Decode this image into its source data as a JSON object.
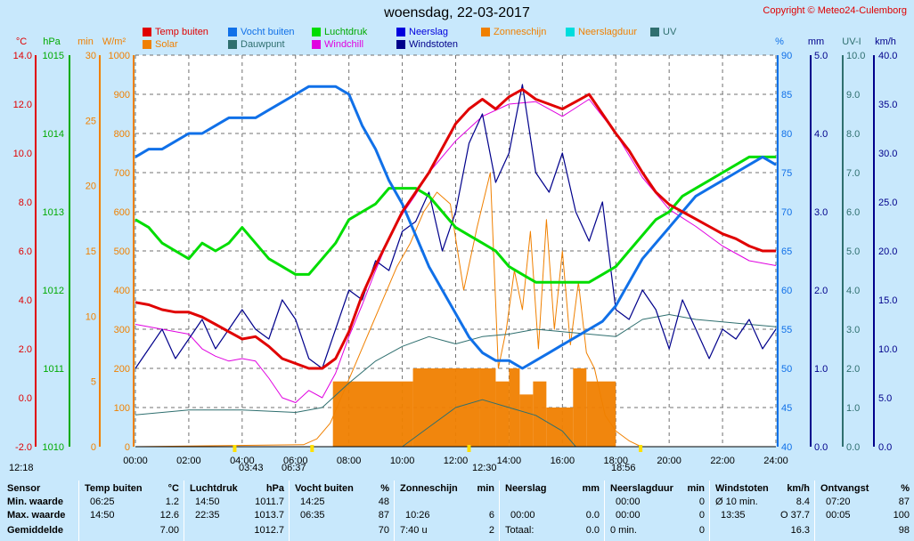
{
  "header": {
    "title": "woensdag, 22-03-2017",
    "copyright": "Copyright © Meteo24-Culemborg"
  },
  "legend": [
    {
      "label": "Temp buiten",
      "color": "#E00000"
    },
    {
      "label": "Solar",
      "color": "#F08000"
    },
    {
      "label": "Vocht buiten",
      "color": "#1070E8"
    },
    {
      "label": "Dauwpunt",
      "color": "#2F6F6F"
    },
    {
      "label": "Luchtdruk",
      "color": "#00DD00"
    },
    {
      "label": "Windchill",
      "color": "#E000E0"
    },
    {
      "label": "Neerslag",
      "color": "#0000DD"
    },
    {
      "label": "Windstoten",
      "color": "#00008B"
    },
    {
      "label": "Zonneschijn",
      "color": "#F08000"
    },
    {
      "label": "Neerslagduur",
      "color": "#00DDDD"
    },
    {
      "label": "UV",
      "color": "#2F6F6F"
    }
  ],
  "axes": {
    "left_units": [
      "°C",
      "hPa",
      "min",
      "W/m²"
    ],
    "right_units": [
      "%",
      "mm",
      "UV-I",
      "km/h"
    ],
    "temp_ticks": [
      "14.0",
      "12.0",
      "10.0",
      "8.0",
      "6.0",
      "4.0",
      "2.0",
      "0.0",
      "-2.0"
    ],
    "hpa_ticks": [
      "1015",
      "1014",
      "1013",
      "1012",
      "1011",
      "1010"
    ],
    "min_ticks": [
      "30",
      "25",
      "20",
      "15",
      "10",
      "5",
      "0"
    ],
    "solar_ticks": [
      "1000",
      "900",
      "800",
      "700",
      "600",
      "500",
      "400",
      "300",
      "200",
      "100",
      "0"
    ],
    "hum_ticks": [
      "90",
      "85",
      "80",
      "75",
      "70",
      "65",
      "60",
      "55",
      "50",
      "45",
      "40"
    ],
    "rain_ticks": [
      "5.0",
      "4.0",
      "3.0",
      "2.0",
      "1.0",
      "0.0"
    ],
    "uv_ticks": [
      "10.0",
      "9.0",
      "8.0",
      "7.0",
      "6.0",
      "5.0",
      "4.0",
      "3.0",
      "2.0",
      "1.0",
      "0.0"
    ],
    "wind_ticks": [
      "40.0",
      "35.0",
      "30.0",
      "25.0",
      "20.0",
      "15.0",
      "10.0",
      "5.0",
      "0.0"
    ],
    "time_ticks": [
      "00:00",
      "02:00",
      "04:00",
      "06:00",
      "08:00",
      "10:00",
      "12:00",
      "14:00",
      "16:00",
      "18:00",
      "20:00",
      "22:00",
      "24:00"
    ]
  },
  "sun_markers": {
    "moonrise": "12:18",
    "dawn": "03:43",
    "sunrise": "06:37",
    "noon": "12:30",
    "sunset": "18:56"
  },
  "chart_data": {
    "type": "line",
    "title": "woensdag, 22-03-2017",
    "x_range_hours": [
      0,
      24
    ],
    "series": [
      {
        "name": "Temp buiten",
        "unit": "°C",
        "ylim": [
          -2,
          14
        ],
        "x": [
          0,
          0.5,
          1,
          1.5,
          2,
          2.5,
          3,
          3.5,
          4,
          4.5,
          5,
          5.5,
          6,
          6.5,
          7,
          7.5,
          8,
          8.5,
          9,
          9.5,
          10,
          10.5,
          11,
          11.5,
          12,
          12.5,
          13,
          13.5,
          14,
          14.5,
          15,
          15.5,
          16,
          16.5,
          17,
          17.5,
          18,
          18.5,
          19,
          19.5,
          20,
          20.5,
          21,
          21.5,
          22,
          22.5,
          23,
          23.5,
          24
        ],
        "values": [
          3.9,
          3.8,
          3.6,
          3.5,
          3.5,
          3.3,
          3.0,
          2.7,
          2.4,
          2.5,
          2.1,
          1.6,
          1.4,
          1.2,
          1.2,
          1.6,
          2.7,
          4.2,
          5.4,
          6.5,
          7.6,
          8.4,
          9.2,
          10.2,
          11.2,
          11.8,
          12.2,
          11.8,
          12.3,
          12.6,
          12.2,
          12.0,
          11.8,
          12.1,
          12.4,
          11.6,
          10.8,
          10.1,
          9.2,
          8.4,
          7.9,
          7.6,
          7.3,
          7.0,
          6.7,
          6.5,
          6.2,
          6.0,
          6.0
        ]
      },
      {
        "name": "Vocht buiten",
        "unit": "%",
        "ylim": [
          40,
          90
        ],
        "x": [
          0,
          0.5,
          1,
          1.5,
          2,
          2.5,
          3,
          3.5,
          4,
          4.5,
          5,
          5.5,
          6,
          6.5,
          7,
          7.5,
          8,
          8.5,
          9,
          9.5,
          10,
          10.5,
          11,
          11.5,
          12,
          12.5,
          13,
          13.5,
          14,
          14.5,
          15,
          15.5,
          16,
          16.5,
          17,
          17.5,
          18,
          18.5,
          19,
          19.5,
          20,
          20.5,
          21,
          21.5,
          22,
          22.5,
          23,
          23.5,
          24
        ],
        "values": [
          77,
          78,
          78,
          79,
          80,
          80,
          81,
          82,
          82,
          82,
          83,
          84,
          85,
          86,
          86,
          86,
          85,
          81,
          78,
          74,
          71,
          67,
          63,
          60,
          57,
          54,
          52,
          51,
          51,
          50,
          51,
          52,
          53,
          54,
          55,
          56,
          58,
          61,
          64,
          66,
          68,
          70,
          72,
          73,
          74,
          75,
          76,
          77,
          76
        ]
      },
      {
        "name": "Luchtdruk",
        "unit": "hPa",
        "ylim": [
          1010,
          1015
        ],
        "x": [
          0,
          0.5,
          1,
          1.5,
          2,
          2.5,
          3,
          3.5,
          4,
          4.5,
          5,
          5.5,
          6,
          6.5,
          7,
          7.5,
          8,
          8.5,
          9,
          9.5,
          10,
          10.5,
          11,
          11.5,
          12,
          12.5,
          13,
          13.5,
          14,
          14.5,
          15,
          15.5,
          16,
          16.5,
          17,
          17.5,
          18,
          18.5,
          19,
          19.5,
          20,
          20.5,
          21,
          21.5,
          22,
          22.5,
          23,
          23.5,
          24
        ],
        "values": [
          1012.9,
          1012.8,
          1012.6,
          1012.5,
          1012.4,
          1012.6,
          1012.5,
          1012.6,
          1012.8,
          1012.6,
          1012.4,
          1012.3,
          1012.2,
          1012.2,
          1012.4,
          1012.6,
          1012.9,
          1013.0,
          1013.1,
          1013.3,
          1013.3,
          1013.3,
          1013.2,
          1013.0,
          1012.8,
          1012.7,
          1012.6,
          1012.5,
          1012.3,
          1012.2,
          1012.1,
          1012.1,
          1012.1,
          1012.1,
          1012.1,
          1012.2,
          1012.3,
          1012.5,
          1012.7,
          1012.9,
          1013.0,
          1013.2,
          1013.3,
          1013.4,
          1013.5,
          1013.6,
          1013.7,
          1013.7,
          1013.7
        ]
      },
      {
        "name": "Solar",
        "unit": "W/m²",
        "ylim": [
          0,
          1000
        ],
        "x": [
          0,
          6.3,
          6.8,
          7.3,
          7.8,
          8.3,
          8.8,
          9.3,
          9.8,
          10.3,
          10.8,
          11.3,
          11.8,
          12.3,
          12.8,
          13.3,
          13.6,
          13.9,
          14.2,
          14.5,
          14.8,
          15.1,
          15.4,
          15.7,
          16.0,
          16.3,
          16.6,
          16.9,
          17.2,
          17.6,
          18.0,
          18.5,
          18.95,
          24
        ],
        "values": [
          0,
          5,
          20,
          60,
          140,
          220,
          300,
          380,
          460,
          520,
          600,
          650,
          620,
          400,
          560,
          700,
          200,
          300,
          450,
          350,
          550,
          250,
          580,
          300,
          500,
          260,
          420,
          240,
          200,
          80,
          40,
          15,
          0,
          0
        ]
      },
      {
        "name": "Zonneschijn",
        "unit": "min",
        "ylim": [
          0,
          30
        ],
        "x": [
          7.4,
          10.4,
          12.9,
          13.5,
          14.0,
          14.4,
          14.9,
          15.4,
          16.4,
          16.9,
          18.0
        ],
        "values": [
          5,
          6,
          6,
          5,
          6,
          4,
          5,
          3,
          6,
          5,
          0
        ]
      },
      {
        "name": "Windstoten",
        "unit": "km/h",
        "ylim": [
          0,
          40
        ],
        "x": [
          0,
          0.5,
          1,
          1.5,
          2,
          2.5,
          3,
          3.5,
          4,
          4.5,
          5,
          5.5,
          6,
          6.5,
          7,
          7.5,
          8,
          8.5,
          9,
          9.5,
          10,
          10.5,
          11,
          11.5,
          12,
          12.5,
          13,
          13.5,
          14,
          14.5,
          15,
          15.5,
          16,
          16.5,
          17,
          17.5,
          18,
          18.5,
          19,
          19.5,
          20,
          20.5,
          21,
          21.5,
          22,
          22.5,
          23,
          23.5,
          24
        ],
        "values": [
          8,
          10,
          12,
          9,
          11,
          13,
          10,
          12,
          14,
          12,
          11,
          15,
          13,
          9,
          8,
          12,
          16,
          15,
          19,
          18,
          22,
          23,
          26,
          20,
          24,
          31,
          34,
          27,
          30,
          37,
          28,
          26,
          30,
          24,
          21,
          25,
          14,
          13,
          16,
          14,
          10,
          15,
          12,
          9,
          12,
          11,
          13,
          10,
          12
        ]
      },
      {
        "name": "Windchill",
        "unit": "°C",
        "ylim": [
          -2,
          14
        ],
        "x": [
          0,
          1,
          2,
          2.5,
          3,
          3.5,
          4,
          4.5,
          5,
          5.5,
          6,
          6.5,
          7,
          7.5,
          8,
          8.5,
          9,
          9.5,
          10,
          10.5,
          11,
          12,
          13,
          14,
          15,
          16,
          17,
          18,
          19,
          20,
          21,
          22,
          23,
          24
        ],
        "values": [
          3.0,
          2.8,
          2.6,
          2.0,
          1.7,
          1.5,
          1.6,
          1.5,
          0.8,
          0.0,
          -0.2,
          0.3,
          0.0,
          1.0,
          2.5,
          3.8,
          5.2,
          6.5,
          7.5,
          8.3,
          9.2,
          10.5,
          11.5,
          12.0,
          12.1,
          11.5,
          12.2,
          10.8,
          9.0,
          7.7,
          7.0,
          6.2,
          5.6,
          5.4
        ]
      },
      {
        "name": "Dauwpunt",
        "unit": "°C",
        "ylim": [
          -2,
          14
        ],
        "x": [
          0,
          2,
          4,
          6,
          7,
          8,
          9,
          10,
          11,
          12,
          13,
          14,
          15,
          16,
          17,
          18,
          19,
          20,
          21,
          22,
          23,
          24
        ],
        "values": [
          -0.7,
          -0.5,
          -0.5,
          -0.6,
          -0.4,
          0.6,
          1.5,
          2.1,
          2.5,
          2.2,
          2.5,
          2.6,
          2.8,
          2.7,
          2.6,
          2.5,
          3.2,
          3.4,
          3.2,
          3.1,
          3.0,
          2.9
        ]
      },
      {
        "name": "UV",
        "unit": "UV-I",
        "ylim": [
          0,
          10
        ],
        "x": [
          0,
          10,
          11,
          12,
          13,
          14,
          15,
          16,
          16.5,
          17,
          24
        ],
        "values": [
          0,
          0,
          0.5,
          1.0,
          1.2,
          1.0,
          0.8,
          0.4,
          0,
          0,
          0
        ]
      }
    ]
  },
  "table": {
    "row_labels": {
      "sensor": "Sensor",
      "min": "Min. waarde",
      "max": "Max. waarde",
      "avg": "Gemiddelde"
    },
    "temp": {
      "header": "Temp buiten",
      "unit": "°C",
      "min_time": "06:25",
      "min": "1.2",
      "max_time": "14:50",
      "max": "12.6",
      "avg": "7.00"
    },
    "pressure": {
      "header": "Luchtdruk",
      "unit": "hPa",
      "min_time": "14:50",
      "min": "1011.7",
      "max_time": "22:35",
      "max": "1013.7",
      "avg": "1012.7"
    },
    "humidity": {
      "header": "Vocht buiten",
      "unit": "%",
      "min_time": "14:25",
      "min": "48",
      "max_time": "06:35",
      "max": "87",
      "avg": "70"
    },
    "sunshine": {
      "header": "Zonneschijn",
      "unit": "min",
      "max_time": "10:26",
      "max": "6",
      "avg_label": "7:40 u",
      "avg": "2"
    },
    "rain": {
      "header": "Neerslag",
      "unit": "mm",
      "max_time": "00:00",
      "max": "0.0",
      "avg_label": "Totaal:",
      "avg": "0.0"
    },
    "rainduration": {
      "header": "Neerslagduur",
      "unit": "min",
      "min_time": "00:00",
      "min": "0",
      "max_time": "00:00",
      "max": "0",
      "avg_label": "0 min.",
      "avg": "0"
    },
    "wind": {
      "header": "Windstoten",
      "unit": "km/h",
      "min_label": "Ø 10 min.",
      "min": "8.4",
      "max_time": "13:35",
      "max_label": "O 37.7",
      "avg": "16.3"
    },
    "dewrecv": {
      "header": "Ontvangst",
      "unit": "%",
      "min_time": "07:20",
      "min": "87",
      "max_time": "00:05",
      "max": "100",
      "avg": "98"
    }
  }
}
